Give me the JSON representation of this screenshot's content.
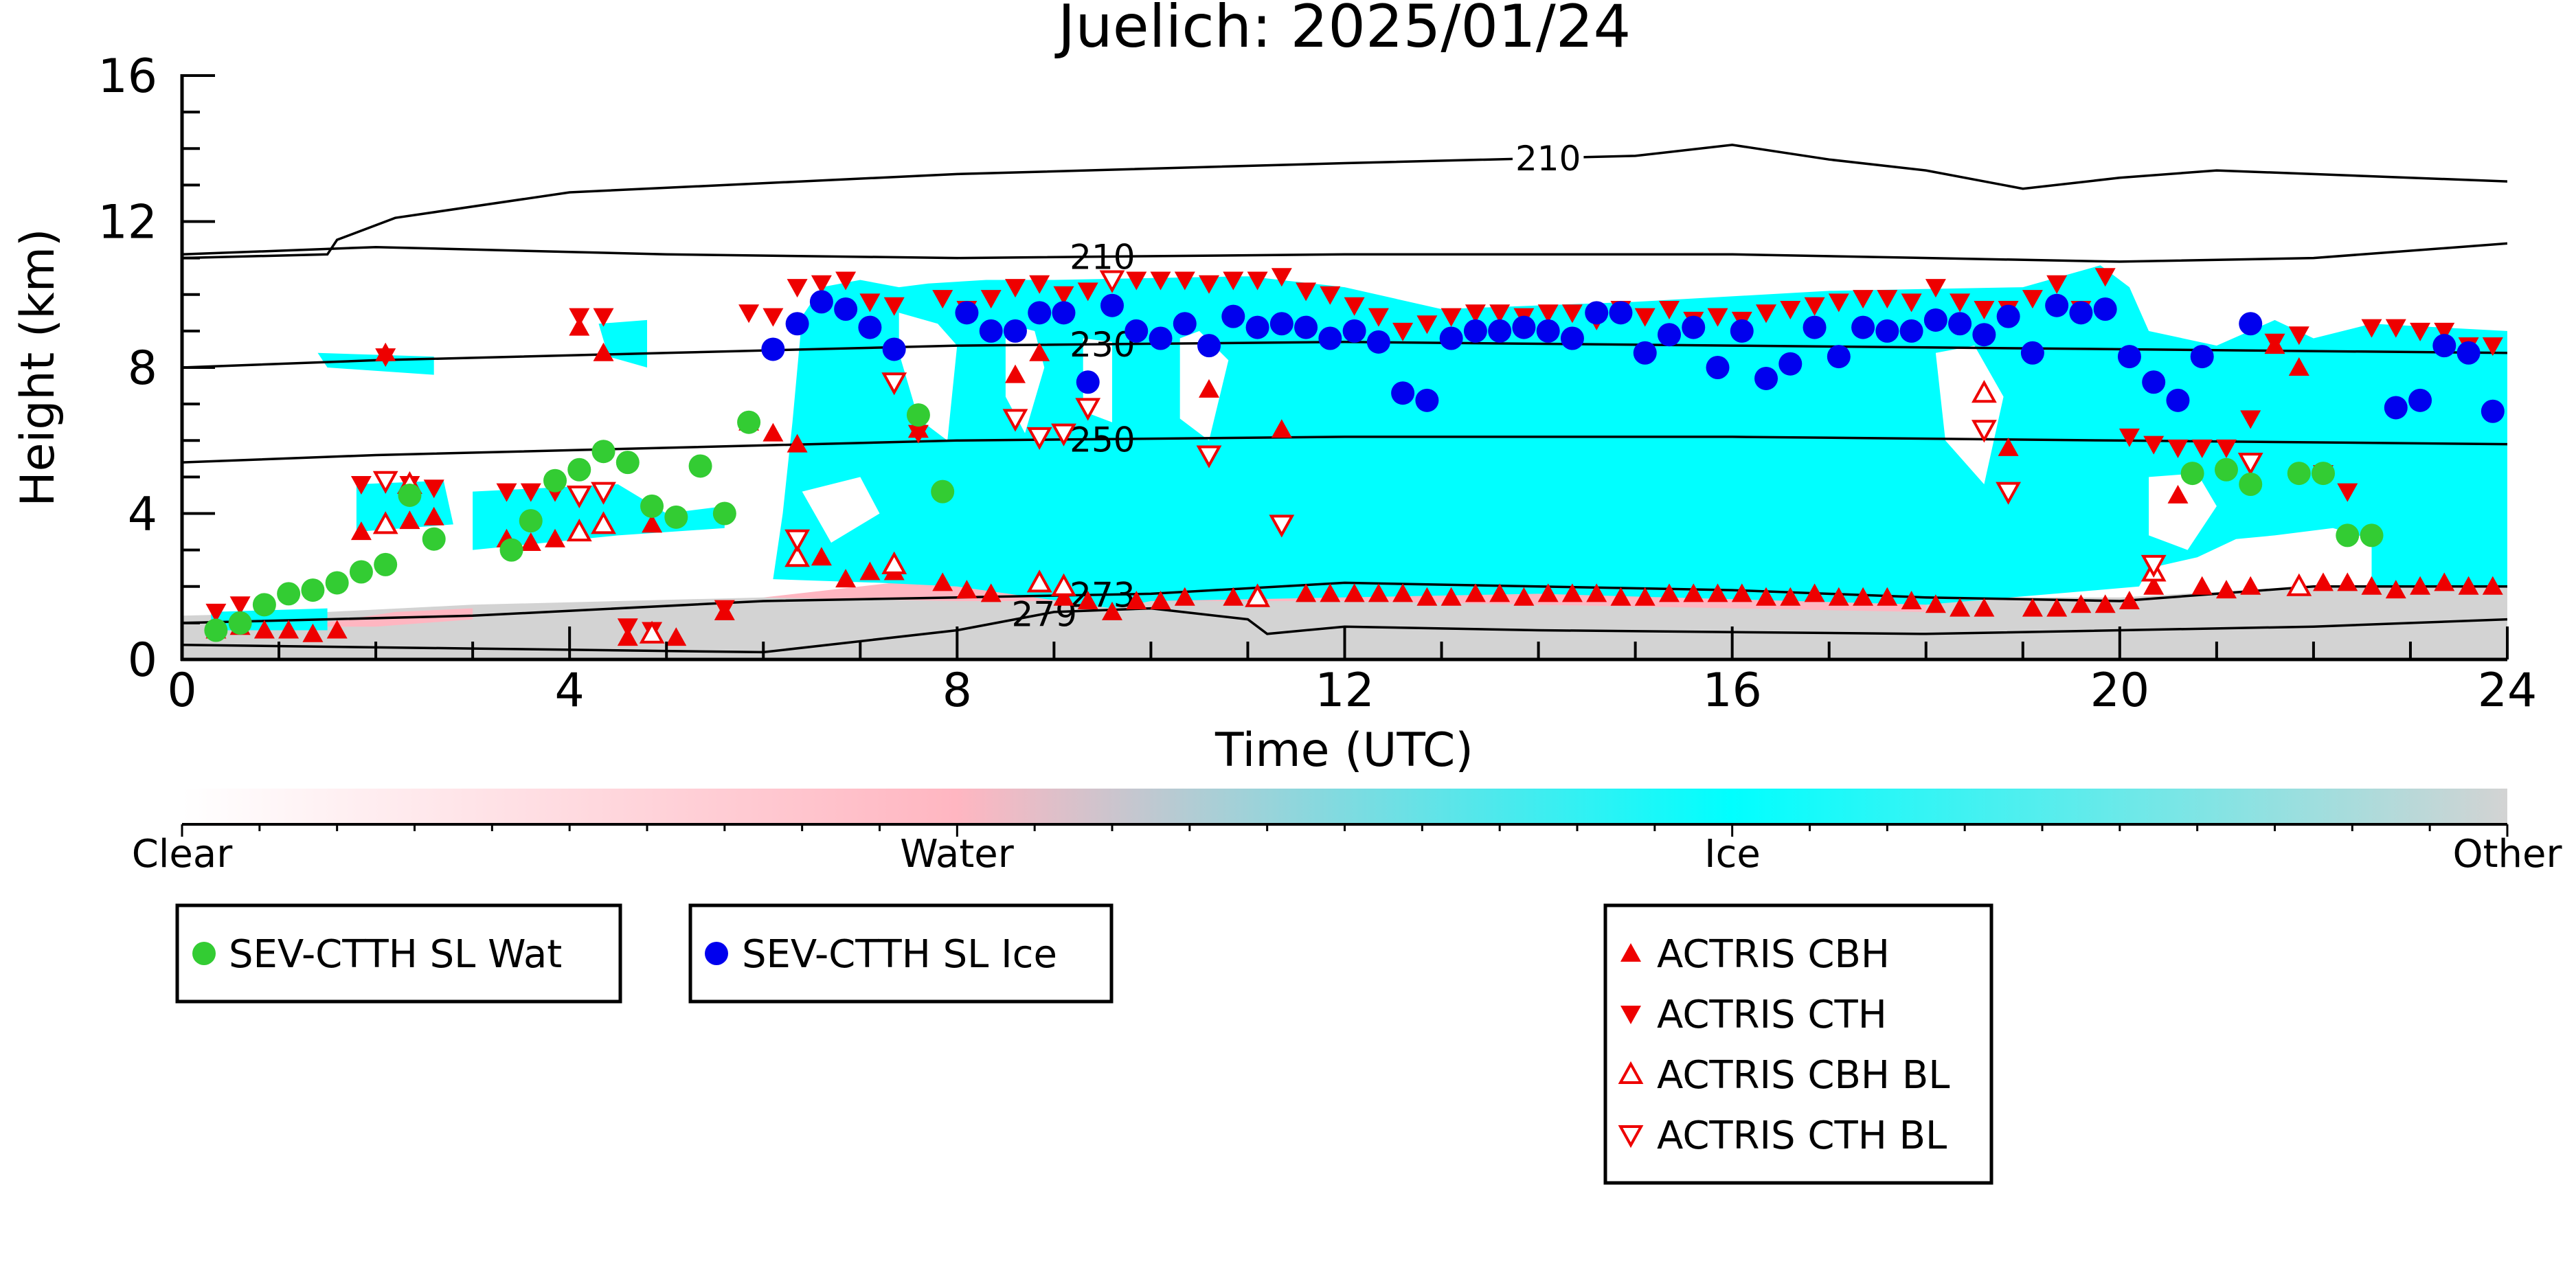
{
  "chart_data": {
    "type": "scatter",
    "title": "Juelich: 2025/01/24",
    "xlabel": "Time (UTC)",
    "ylabel": "Height (km)",
    "xlim": [
      0,
      24
    ],
    "ylim": [
      0,
      16
    ],
    "xticks": [
      0,
      4,
      8,
      12,
      16,
      20,
      24
    ],
    "yticks": [
      0,
      4,
      8,
      12,
      16
    ],
    "grid": false,
    "colors": {
      "clear": "#ffffff",
      "water": "#ffb6c1",
      "ice": "#00ffff",
      "other": "#d3d3d3",
      "wat": "#33cc33",
      "ice_marker": "#0000ee",
      "actris": "#ee0000",
      "contour": "#000000"
    },
    "colorbar": {
      "labels": [
        "Clear",
        "Water",
        "Ice",
        "Other"
      ]
    },
    "contours": [
      {
        "label": "210",
        "points": [
          [
            0,
            11.0
          ],
          [
            1.5,
            11.1
          ],
          [
            1.6,
            11.5
          ],
          [
            2.2,
            12.1
          ],
          [
            4,
            12.8
          ],
          [
            8,
            13.3
          ],
          [
            12,
            13.6
          ],
          [
            15,
            13.8
          ],
          [
            16,
            14.1
          ],
          [
            17,
            13.7
          ],
          [
            18,
            13.4
          ],
          [
            19,
            12.9
          ],
          [
            20,
            13.2
          ],
          [
            21,
            13.4
          ],
          [
            22,
            13.3
          ],
          [
            24,
            13.1
          ]
        ]
      },
      {
        "label": "210",
        "points": [
          [
            0,
            11.1
          ],
          [
            2,
            11.3
          ],
          [
            5,
            11.1
          ],
          [
            8,
            11.0
          ],
          [
            12,
            11.1
          ],
          [
            16,
            11.1
          ],
          [
            20,
            10.9
          ],
          [
            22,
            11.0
          ],
          [
            24,
            11.4
          ]
        ]
      },
      {
        "label": "230",
        "points": [
          [
            0,
            8.0
          ],
          [
            2,
            8.2
          ],
          [
            5,
            8.4
          ],
          [
            8,
            8.6
          ],
          [
            12,
            8.7
          ],
          [
            16,
            8.6
          ],
          [
            20,
            8.5
          ],
          [
            24,
            8.4
          ]
        ]
      },
      {
        "label": "250",
        "points": [
          [
            0,
            5.4
          ],
          [
            2,
            5.6
          ],
          [
            5,
            5.8
          ],
          [
            8,
            6.0
          ],
          [
            12,
            6.1
          ],
          [
            16,
            6.1
          ],
          [
            20,
            6.0
          ],
          [
            24,
            5.9
          ]
        ]
      },
      {
        "label": "273",
        "points": [
          [
            0,
            1.0
          ],
          [
            3,
            1.2
          ],
          [
            6,
            1.6
          ],
          [
            8,
            1.7
          ],
          [
            10,
            1.8
          ],
          [
            12,
            2.1
          ],
          [
            16,
            1.9
          ],
          [
            18,
            1.7
          ],
          [
            20,
            1.6
          ],
          [
            22,
            2.0
          ],
          [
            24,
            2.0
          ]
        ]
      },
      {
        "label": "279",
        "points": [
          [
            0,
            0.4
          ],
          [
            3,
            0.3
          ],
          [
            6,
            0.2
          ],
          [
            8,
            0.8
          ],
          [
            9,
            1.3
          ],
          [
            10,
            1.4
          ],
          [
            11,
            1.1
          ],
          [
            11.2,
            0.7
          ],
          [
            12,
            0.9
          ],
          [
            14,
            0.8
          ],
          [
            18,
            0.7
          ],
          [
            22,
            0.9
          ],
          [
            24,
            1.1
          ]
        ]
      }
    ],
    "series": [
      {
        "name": "SEV-CTTH SL Wat",
        "marker": "circle",
        "color": "#33cc33",
        "x": [
          0.35,
          0.6,
          0.85,
          1.1,
          1.35,
          1.6,
          1.85,
          2.1,
          2.35,
          2.6,
          3.4,
          3.6,
          3.85,
          4.1,
          4.35,
          4.6,
          4.85,
          5.1,
          5.35,
          5.6,
          5.85,
          7.6,
          7.85,
          20.75,
          21.1,
          21.35,
          21.85,
          22.1,
          22.35,
          22.6
        ],
        "y": [
          0.8,
          1.0,
          1.5,
          1.8,
          1.9,
          2.1,
          2.4,
          2.6,
          4.5,
          3.3,
          3.0,
          3.8,
          4.9,
          5.2,
          5.7,
          5.4,
          4.2,
          3.9,
          5.3,
          4.0,
          6.5,
          6.7,
          4.6,
          5.1,
          5.2,
          4.8,
          5.1,
          5.1,
          3.4,
          3.4
        ]
      },
      {
        "name": "SEV-CTTH SL Ice",
        "marker": "circle",
        "color": "#0000ee",
        "x": [
          6.1,
          6.35,
          6.6,
          6.85,
          7.1,
          7.35,
          8.1,
          8.35,
          8.6,
          8.85,
          9.1,
          9.35,
          9.6,
          9.85,
          10.1,
          10.35,
          10.6,
          10.85,
          11.1,
          11.35,
          11.6,
          11.85,
          12.1,
          12.35,
          12.6,
          12.85,
          13.1,
          13.35,
          13.6,
          13.85,
          14.1,
          14.35,
          14.6,
          14.85,
          15.1,
          15.35,
          15.6,
          15.85,
          16.1,
          16.35,
          16.6,
          16.85,
          17.1,
          17.35,
          17.6,
          17.85,
          18.1,
          18.35,
          18.6,
          18.85,
          19.1,
          19.35,
          19.6,
          19.85,
          20.1,
          20.35,
          20.6,
          20.85,
          21.35,
          22.85,
          23.1,
          23.35,
          23.6,
          23.85
        ],
        "y": [
          8.5,
          9.2,
          9.8,
          9.6,
          9.1,
          8.5,
          9.5,
          9.0,
          9.0,
          9.5,
          9.5,
          7.6,
          9.7,
          9.0,
          8.8,
          9.2,
          8.6,
          9.4,
          9.1,
          9.2,
          9.1,
          8.8,
          9.0,
          8.7,
          7.3,
          7.1,
          8.8,
          9.0,
          9.0,
          9.1,
          9.0,
          8.8,
          9.5,
          9.5,
          8.4,
          8.9,
          9.1,
          8.0,
          9.0,
          7.7,
          8.1,
          9.1,
          8.3,
          9.1,
          9.0,
          9.0,
          9.3,
          9.2,
          8.9,
          9.4,
          8.4,
          9.7,
          9.5,
          9.6,
          8.3,
          7.6,
          7.1,
          8.3,
          9.2,
          6.9,
          7.1,
          8.6,
          8.4,
          6.8
        ]
      },
      {
        "name": "ACTRIS CBH",
        "marker": "triangle-up",
        "color": "#ee0000",
        "x": [
          0.35,
          0.6,
          0.85,
          1.1,
          1.35,
          1.6,
          1.85,
          2.1,
          2.35,
          2.6,
          3.35,
          3.6,
          3.85,
          4.1,
          4.35,
          4.6,
          4.85,
          5.1,
          5.6,
          5.85,
          6.1,
          6.35,
          6.6,
          6.85,
          7.1,
          7.35,
          7.6,
          7.85,
          8.1,
          8.35,
          8.6,
          8.85,
          9.1,
          9.35,
          9.6,
          9.85,
          10.1,
          10.35,
          10.6,
          10.85,
          11.1,
          11.35,
          11.6,
          11.85,
          12.1,
          12.35,
          12.6,
          12.85,
          13.1,
          13.35,
          13.6,
          13.85,
          14.1,
          14.35,
          14.6,
          14.85,
          15.1,
          15.35,
          15.6,
          15.85,
          16.1,
          16.35,
          16.6,
          16.85,
          17.1,
          17.35,
          17.6,
          17.85,
          18.1,
          18.35,
          18.6,
          18.85,
          19.1,
          19.35,
          19.6,
          19.85,
          20.1,
          20.35,
          20.6,
          20.85,
          21.1,
          21.35,
          21.6,
          21.85,
          22.1,
          22.35,
          22.6,
          22.85,
          23.1,
          23.35,
          23.6,
          23.85
        ],
        "y": [
          0.8,
          0.9,
          0.8,
          0.8,
          0.7,
          0.8,
          3.5,
          8.4,
          3.8,
          3.9,
          3.3,
          3.2,
          3.3,
          9.1,
          8.4,
          0.6,
          3.7,
          0.6,
          1.3,
          6.5,
          6.2,
          5.9,
          2.8,
          2.2,
          2.4,
          2.4,
          6.3,
          2.1,
          1.9,
          1.8,
          7.8,
          8.4,
          1.7,
          1.6,
          1.3,
          1.6,
          1.6,
          1.7,
          7.4,
          1.7,
          1.8,
          6.3,
          1.8,
          1.8,
          1.8,
          1.8,
          1.8,
          1.7,
          1.7,
          1.8,
          1.8,
          1.7,
          1.8,
          1.8,
          1.8,
          1.7,
          1.7,
          1.8,
          1.8,
          1.8,
          1.8,
          1.7,
          1.7,
          1.8,
          1.7,
          1.7,
          1.7,
          1.6,
          1.5,
          1.4,
          1.4,
          5.8,
          1.4,
          1.4,
          1.5,
          1.5,
          1.6,
          2.0,
          4.5,
          2.0,
          1.9,
          2.0,
          8.6,
          8.0,
          2.1,
          2.1,
          2.0,
          1.9,
          2.0,
          2.1,
          2.0,
          2.0
        ]
      },
      {
        "name": "ACTRIS CTH",
        "marker": "triangle-down",
        "color": "#ee0000",
        "x": [
          0.35,
          0.6,
          2.1,
          1.85,
          2.35,
          2.6,
          3.35,
          3.6,
          3.85,
          4.1,
          4.35,
          4.6,
          4.85,
          5.6,
          5.85,
          6.1,
          6.35,
          6.6,
          6.85,
          7.1,
          7.35,
          7.6,
          7.85,
          8.1,
          8.35,
          8.6,
          8.85,
          9.1,
          9.35,
          9.6,
          9.85,
          10.1,
          10.35,
          10.6,
          10.85,
          11.1,
          11.35,
          11.6,
          11.85,
          12.1,
          12.35,
          12.6,
          12.85,
          13.1,
          13.35,
          13.6,
          13.85,
          14.1,
          14.35,
          14.6,
          14.85,
          15.1,
          15.35,
          15.6,
          15.85,
          16.1,
          16.35,
          16.6,
          16.85,
          17.1,
          17.35,
          17.6,
          17.85,
          18.1,
          18.35,
          18.6,
          18.85,
          19.1,
          19.35,
          19.6,
          19.85,
          20.1,
          20.35,
          20.6,
          20.85,
          21.1,
          21.35,
          21.6,
          21.85,
          22.1,
          22.35,
          22.6,
          22.85,
          23.1,
          23.35,
          23.6,
          23.85
        ],
        "y": [
          1.3,
          1.5,
          8.3,
          4.8,
          4.8,
          4.7,
          4.6,
          4.6,
          4.6,
          9.4,
          9.4,
          0.9,
          0.8,
          1.4,
          9.5,
          9.4,
          10.2,
          10.3,
          10.4,
          9.8,
          9.7,
          6.2,
          9.9,
          9.6,
          9.9,
          10.2,
          10.3,
          10.0,
          10.1,
          10.4,
          10.4,
          10.4,
          10.4,
          10.3,
          10.4,
          10.4,
          10.5,
          10.1,
          10.0,
          9.7,
          9.4,
          9.0,
          9.2,
          9.4,
          9.5,
          9.5,
          9.4,
          9.5,
          9.5,
          9.3,
          9.6,
          9.4,
          9.6,
          9.3,
          9.4,
          9.3,
          9.5,
          9.6,
          9.7,
          9.8,
          9.9,
          9.9,
          9.8,
          10.2,
          9.8,
          9.6,
          9.6,
          9.9,
          10.3,
          9.6,
          10.5,
          6.1,
          5.9,
          5.8,
          5.8,
          5.8,
          6.6,
          8.7,
          8.9,
          5.1,
          4.6,
          9.1,
          9.1,
          9.0,
          9.0,
          8.6,
          8.6
        ]
      },
      {
        "name": "ACTRIS CBH BL",
        "marker": "triangle-up-open",
        "color": "#ee0000",
        "x": [
          2.1,
          2.35,
          4.1,
          4.35,
          4.85,
          6.35,
          7.35,
          8.85,
          9.1,
          11.1,
          18.6,
          20.35,
          21.85
        ],
        "y": [
          3.7,
          4.8,
          3.5,
          3.7,
          0.7,
          2.8,
          2.6,
          2.1,
          2.0,
          1.7,
          7.3,
          2.4,
          2.0
        ]
      },
      {
        "name": "ACTRIS CTH BL",
        "marker": "triangle-down-open",
        "color": "#ee0000",
        "x": [
          2.1,
          4.1,
          4.35,
          6.35,
          7.35,
          8.6,
          8.85,
          9.1,
          9.35,
          9.6,
          10.6,
          11.35,
          18.6,
          18.85,
          20.35,
          21.35
        ],
        "y": [
          4.9,
          4.5,
          4.6,
          3.3,
          7.6,
          6.6,
          6.1,
          6.2,
          6.9,
          10.4,
          5.6,
          3.7,
          6.3,
          4.6,
          2.6,
          5.4
        ]
      }
    ]
  }
}
